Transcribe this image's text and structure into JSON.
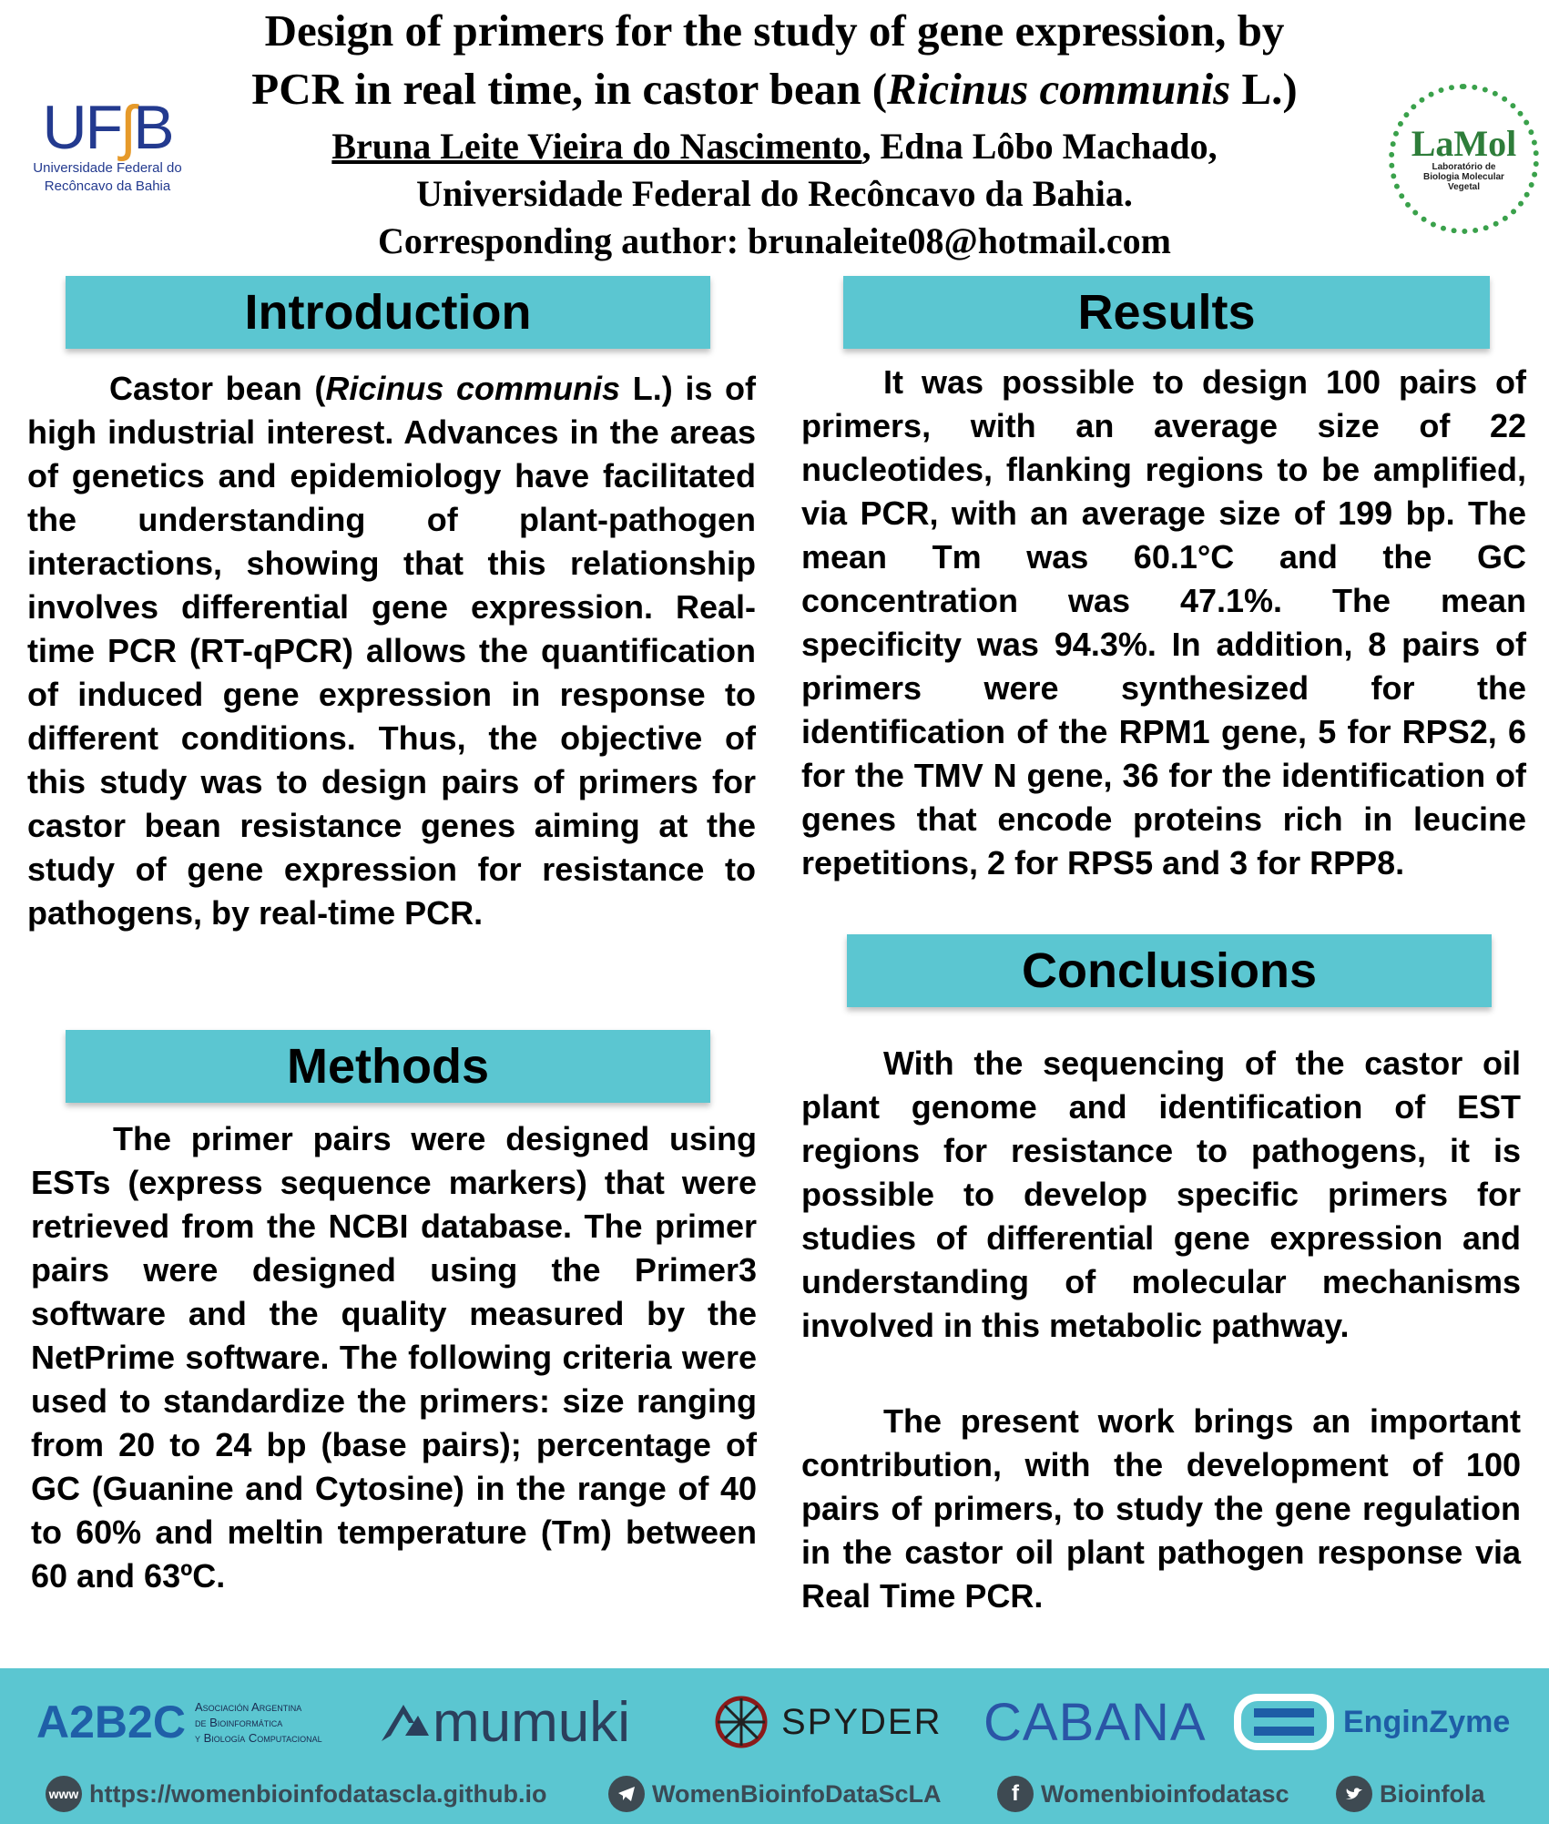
{
  "header": {
    "title_line1": "Design of primers for the study of gene expression, by",
    "title_line2_pre": "PCR in real time, in castor bean (",
    "title_line2_italic": "Ricinus communis",
    "title_line2_post": " L.)",
    "author_first": "Bruna Leite Vieira do Nascimento",
    "author_rest": ", Edna Lôbo Machado,",
    "affiliation": "Universidade Federal do Recôncavo da Bahia.",
    "corresponding": "Corresponding author: brunaleite08@hotmail.com"
  },
  "logos": {
    "ufrb_mark_a": "UF",
    "ufrb_mark_b": "B",
    "ufrb_line1": "Universidade Federal do",
    "ufrb_line2": "Recôncavo da Bahia",
    "lamol_name": "LaMol",
    "lamol_sub": "Laboratório de Biologia Molecular Vegetal"
  },
  "introduction": {
    "heading": "Introduction",
    "text_pre": "Castor bean (",
    "text_italic": "Ricinus communis",
    "text_post": " L.) is of high industrial interest.  Advances in the areas of genetics and epidemiology have facilitated the understanding of plant-pathogen interactions, showing that this relationship involves differential gene expression. Real-time PCR (RT-qPCR) allows the quantification of induced gene expression in response to different conditions. Thus, the objective of this study was to design pairs of primers for castor bean resistance genes aiming at the study of gene expression for resistance to pathogens, by real-time PCR."
  },
  "methods": {
    "heading": "Methods",
    "text": "The primer pairs were designed using ESTs (express sequence markers) that were retrieved from the NCBI database. The primer pairs were designed using the Primer3 software and the quality measured by the NetPrime software. The following criteria were used to standardize the primers: size ranging from 20 to 24 bp (base pairs); percentage of GC (Guanine and Cytosine) in the range of 40 to 60% and meltin temperature (Tm) between 60 and 63ºC."
  },
  "results": {
    "heading": "Results",
    "text": "It was possible to design 100 pairs of primers, with an average size of 22 nucleotides, flanking regions to be amplified, via PCR, with an average size of 199 bp.  The mean Tm was 60.1°C and the GC concentration was 47.1%. The mean specificity was 94.3%.  In addition, 8 pairs of primers were synthesized for the identification of the RPM1 gene, 5 for RPS2, 6 for the TMV N gene, 36 for the identification of genes that encode proteins rich in leucine repetitions, 2 for RPS5 and 3 for RPP8."
  },
  "conclusions": {
    "heading": "Conclusions",
    "paragraph1": "With the sequencing of the castor oil plant genome and identification of EST regions for resistance to pathogens, it is possible to develop specific primers for studies of differential gene expression and understanding of molecular mechanisms involved in this metabolic pathway.",
    "paragraph2": "The present work brings an important contribution, with the development of 100 pairs of primers, to study the gene regulation in the castor oil plant pathogen response via Real Time PCR."
  },
  "footer": {
    "sponsors": {
      "abc_mark": "A2B2C",
      "abc_line1": "Asociación Argentina",
      "abc_line2": "de Bioinformática",
      "abc_line3": "y Biología Computacional",
      "mumuki": "mumuki",
      "spyder": "SPYDER",
      "cabana": "CABANA",
      "enginzyme": "EnginZyme"
    },
    "contacts": {
      "website_icon": "www",
      "website": "https://womenbioinfodatascla.github.io",
      "telegram": "WomenBioinfoDataScLA",
      "facebook": "Womenbioinfodatasc",
      "twitter": "Bioinfola"
    },
    "colors": {
      "band": "#5bc6d1"
    }
  }
}
